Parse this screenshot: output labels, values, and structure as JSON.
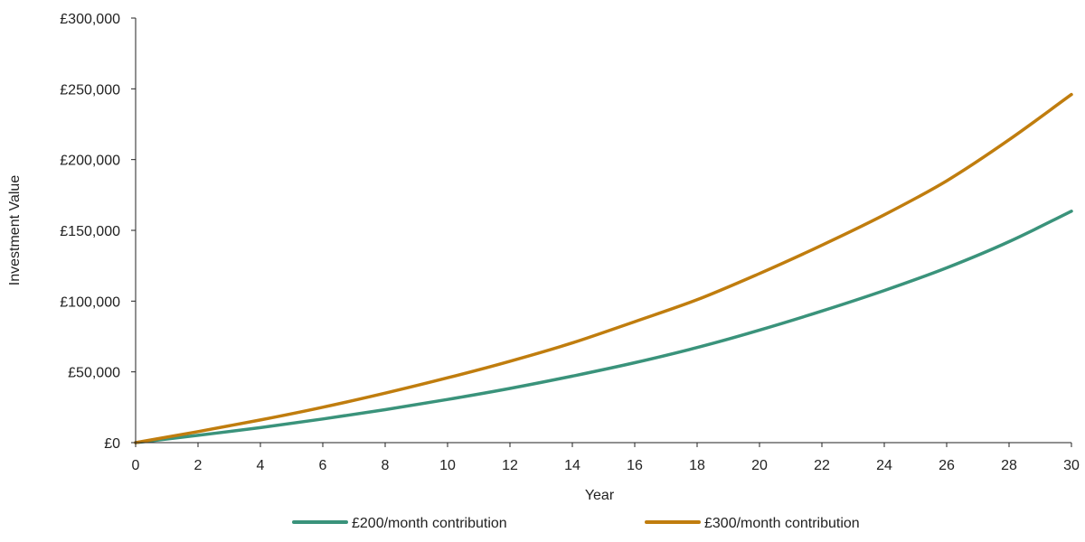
{
  "chart_data": {
    "type": "line",
    "title": "",
    "xlabel": "Year",
    "ylabel": "Investment Value",
    "xlim": [
      0,
      30
    ],
    "ylim": [
      0,
      300000
    ],
    "x_ticks": [
      0,
      2,
      4,
      6,
      8,
      10,
      12,
      14,
      16,
      18,
      20,
      22,
      24,
      26,
      28,
      30
    ],
    "x_tick_labels": [
      "0",
      "2",
      "4",
      "6",
      "8",
      "10",
      "12",
      "14",
      "16",
      "18",
      "20",
      "22",
      "24",
      "26",
      "28",
      "30"
    ],
    "y_ticks": [
      0,
      50000,
      100000,
      150000,
      200000,
      250000,
      300000
    ],
    "y_tick_labels": [
      "£0",
      "£50,000",
      "£100,000",
      "£150,000",
      "£200,000",
      "£250,000",
      "£300,000"
    ],
    "grid": false,
    "legend_position": "bottom",
    "x": [
      0,
      2,
      4,
      6,
      8,
      10,
      12,
      14,
      16,
      18,
      20,
      22,
      24,
      26,
      28,
      30
    ],
    "series": [
      {
        "name": "£200/month contribution",
        "color": "#3a937b",
        "values": [
          0,
          5200,
          10600,
          16700,
          23300,
          30500,
          38300,
          47000,
          56500,
          67200,
          79500,
          93000,
          107500,
          123500,
          142000,
          163500
        ]
      },
      {
        "name": "£300/month contribution",
        "color": "#c07d0e",
        "values": [
          0,
          7800,
          16000,
          25000,
          35000,
          45800,
          57500,
          70500,
          85500,
          101000,
          119500,
          139500,
          161000,
          185000,
          214000,
          246000
        ]
      }
    ]
  }
}
